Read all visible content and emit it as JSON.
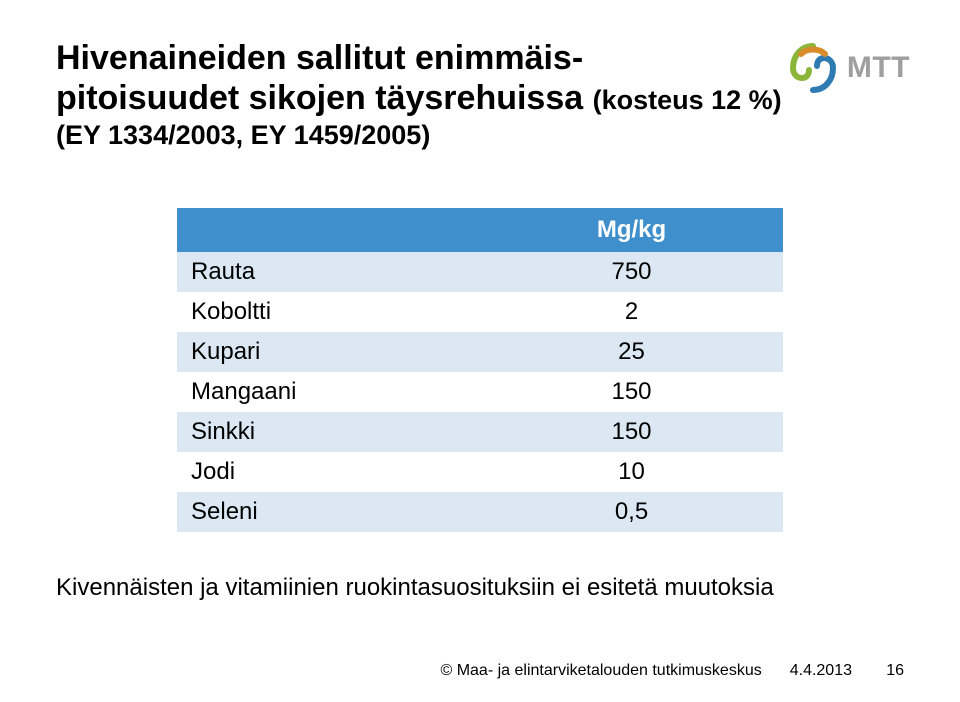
{
  "title_line1": "Hivenaineiden sallitut enimmäis-",
  "title_line2": "pitoisuudet sikojen täysrehuissa",
  "subtitle_part1": "(kosteus 12 %)",
  "subtitle_part2": "(EY 1334/2003, EY 1459/2005)",
  "logo_text": "MTT",
  "logo_colors": {
    "green": "#8bb53b",
    "orange": "#d98b2a",
    "blue": "#2e7bb3"
  },
  "table": {
    "header_bg": "#3e8fcc",
    "header_text_color": "#ffffff",
    "row_alt_bg": "#dbe8f3",
    "row_bg": "#ffffff",
    "columns": [
      "",
      "Mg/kg"
    ],
    "rows": [
      {
        "label": "Rauta",
        "value": "750"
      },
      {
        "label": "Koboltti",
        "value": "2"
      },
      {
        "label": "Kupari",
        "value": "25"
      },
      {
        "label": "Mangaani",
        "value": "150"
      },
      {
        "label": "Sinkki",
        "value": "150"
      },
      {
        "label": "Jodi",
        "value": "10"
      },
      {
        "label": "Seleni",
        "value": "0,5"
      }
    ]
  },
  "note": "Kivennäisten ja vitamiinien ruokintasuosituksiin ei esitetä muutoksia",
  "footer": {
    "copyright": "© Maa- ja elintarviketalouden tutkimuskeskus",
    "date": "4.4.2013",
    "page": "16"
  }
}
